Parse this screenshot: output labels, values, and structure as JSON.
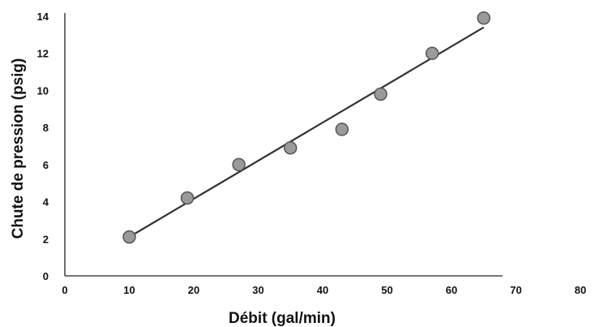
{
  "chart_data": {
    "type": "scatter",
    "title": "",
    "xlabel": "Débit (gal/min)",
    "ylabel": "Chute de pression (psig)",
    "xlim": [
      0,
      80
    ],
    "ylim": [
      0,
      14
    ],
    "xticks": [
      {
        "label": "0",
        "value": 0
      },
      {
        "label": "10",
        "value": 10
      },
      {
        "label": "20",
        "value": 20
      },
      {
        "label": "30",
        "value": 30
      },
      {
        "label": "40",
        "value": 40
      },
      {
        "label": "50",
        "value": 50
      },
      {
        "label": "60",
        "value": 60
      },
      {
        "label": "70",
        "value": 70
      },
      {
        "label": "80",
        "value": 80
      }
    ],
    "yticks": [
      {
        "label": "0",
        "value": 0
      },
      {
        "label": "2",
        "value": 2
      },
      {
        "label": "4",
        "value": 4
      },
      {
        "label": "6",
        "value": 6
      },
      {
        "label": "8",
        "value": 8
      },
      {
        "label": "10",
        "value": 10
      },
      {
        "label": "12",
        "value": 12
      },
      {
        "label": "14",
        "value": 14
      }
    ],
    "points": [
      {
        "x": 10,
        "y": 2.1
      },
      {
        "x": 19,
        "y": 4.2
      },
      {
        "x": 27,
        "y": 6.0
      },
      {
        "x": 35,
        "y": 6.9
      },
      {
        "x": 43,
        "y": 7.9
      },
      {
        "x": 49,
        "y": 9.8
      },
      {
        "x": 57,
        "y": 12.0
      },
      {
        "x": 65,
        "y": 13.9
      }
    ],
    "trendline": {
      "x1": 10,
      "y1": 2.1,
      "x2": 65,
      "y2": 13.4
    },
    "grid": false,
    "legend": "none"
  }
}
